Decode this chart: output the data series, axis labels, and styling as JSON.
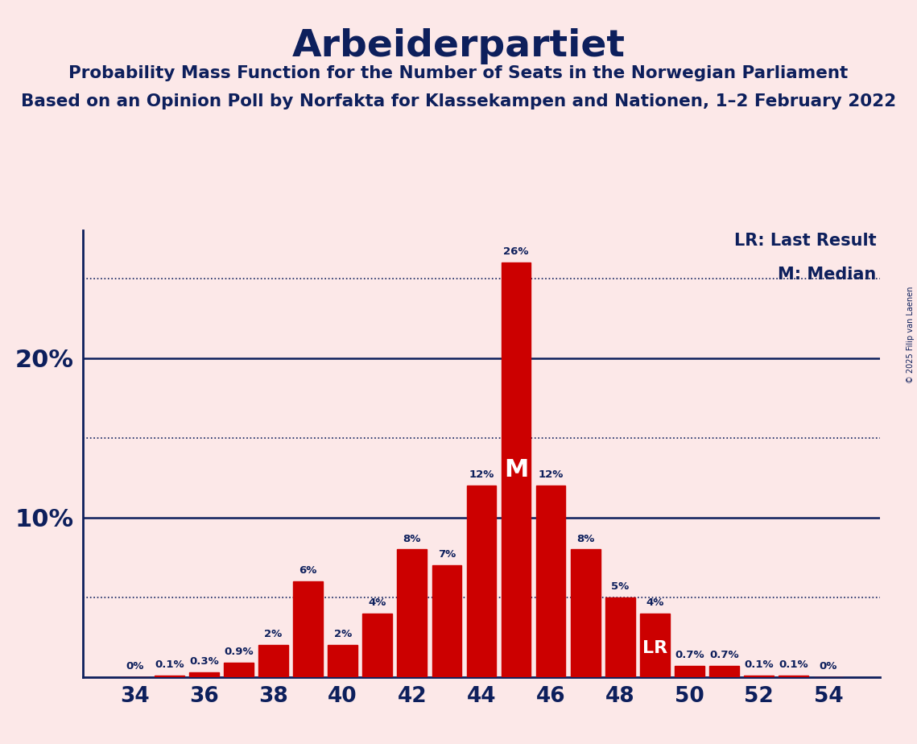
{
  "title": "Arbeiderpartiet",
  "subtitle1": "Probability Mass Function for the Number of Seats in the Norwegian Parliament",
  "subtitle2": "Based on an Opinion Poll by Norfakta for Klassekampen and Nationen, 1–2 February 2022",
  "copyright": "© 2025 Filip van Laenen",
  "seats": [
    34,
    35,
    36,
    37,
    38,
    39,
    40,
    41,
    42,
    43,
    44,
    45,
    46,
    47,
    48,
    49,
    50,
    51,
    52,
    53,
    54
  ],
  "probabilities": [
    0.0,
    0.1,
    0.3,
    0.9,
    2.0,
    6.0,
    2.0,
    4.0,
    8.0,
    7.0,
    12.0,
    26.0,
    12.0,
    8.0,
    5.0,
    4.0,
    0.7,
    0.7,
    0.1,
    0.1,
    0.0
  ],
  "bar_color": "#cc0000",
  "background_color": "#fce8e8",
  "text_color": "#0d1f5c",
  "axis_color": "#0d1f5c",
  "median_seat": 45,
  "last_result_seat": 49,
  "dotted_levels": [
    5,
    15,
    25
  ],
  "solid_levels": [
    10,
    20
  ],
  "xlim": [
    32.5,
    55.5
  ],
  "ylim": [
    0,
    28
  ]
}
